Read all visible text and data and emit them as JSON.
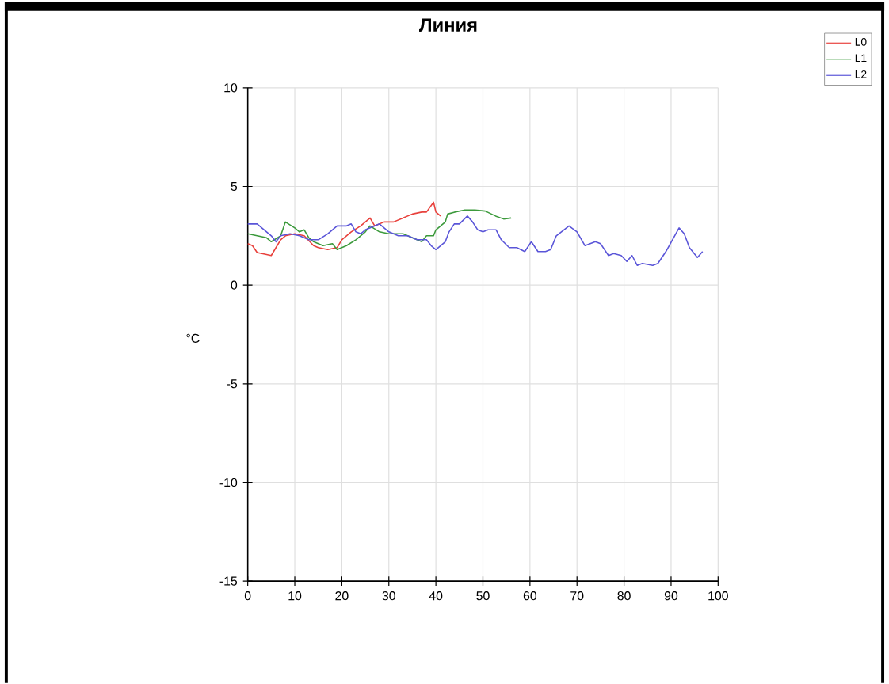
{
  "chart_data": {
    "type": "line",
    "title": "Линия",
    "ylabel": "°C",
    "xlim": [
      0,
      100
    ],
    "ylim": [
      -15,
      10
    ],
    "xticks": [
      0,
      10,
      20,
      30,
      40,
      50,
      60,
      70,
      80,
      90,
      100
    ],
    "yticks": [
      -15,
      -10,
      -5,
      0,
      5,
      10
    ],
    "grid": true,
    "legend": "top right",
    "marker": "none",
    "line_style": "solid",
    "series": [
      {
        "name": "L0",
        "color": "#e8413c",
        "x": [
          0,
          1,
          2,
          3,
          4,
          5,
          6,
          7,
          8,
          10,
          12,
          14,
          15,
          17,
          19,
          20,
          22,
          24,
          26,
          27,
          29,
          31,
          33,
          35,
          37,
          38,
          39.5,
          40,
          41
        ],
        "values": [
          2.1,
          2.0,
          1.65,
          1.6,
          1.55,
          1.5,
          1.9,
          2.3,
          2.5,
          2.6,
          2.5,
          2.0,
          1.9,
          1.8,
          1.9,
          2.3,
          2.7,
          3.0,
          3.4,
          3.0,
          3.2,
          3.2,
          3.4,
          3.6,
          3.7,
          3.7,
          4.2,
          3.7,
          3.5
        ]
      },
      {
        "name": "L1",
        "color": "#3c9a3c",
        "x": [
          0,
          2,
          4,
          5,
          7,
          8,
          10,
          11,
          12,
          13,
          14,
          16,
          18,
          19,
          20,
          21,
          23,
          25,
          26,
          28,
          30,
          33,
          35,
          37,
          38,
          39.5,
          40,
          42,
          42.5,
          44,
          46,
          48.3,
          50.5,
          52.7,
          54.4,
          56
        ],
        "values": [
          2.6,
          2.5,
          2.4,
          2.2,
          2.5,
          3.2,
          2.9,
          2.7,
          2.8,
          2.4,
          2.2,
          2.0,
          2.1,
          1.8,
          1.9,
          2.0,
          2.3,
          2.7,
          3.0,
          2.7,
          2.6,
          2.6,
          2.4,
          2.2,
          2.5,
          2.5,
          2.8,
          3.2,
          3.6,
          3.7,
          3.8,
          3.8,
          3.75,
          3.5,
          3.35,
          3.4
        ]
      },
      {
        "name": "L2",
        "color": "#5a55d8",
        "x": [
          0,
          2,
          3,
          5,
          6,
          7,
          9,
          11,
          13,
          15,
          17,
          19,
          21,
          22,
          23,
          24,
          25,
          27,
          28,
          30,
          32,
          34,
          36,
          38,
          39,
          40,
          42,
          42.8,
          43.9,
          45,
          46.7,
          47.8,
          48.9,
          50,
          51.1,
          52.8,
          53.9,
          55.6,
          57.2,
          58.9,
          60.3,
          61.7,
          63.3,
          64.4,
          65.6,
          68.3,
          70,
          71.7,
          73.9,
          75,
          76.7,
          77.8,
          79.4,
          80.6,
          81.7,
          82.8,
          83.9,
          86.1,
          87.2,
          88.9,
          91.7,
          92.8,
          93.9,
          95.6,
          96.7
        ],
        "values": [
          3.1,
          3.1,
          2.9,
          2.5,
          2.2,
          2.5,
          2.6,
          2.5,
          2.3,
          2.3,
          2.6,
          3.0,
          3.0,
          3.1,
          2.7,
          2.6,
          2.8,
          3.0,
          3.1,
          2.7,
          2.5,
          2.5,
          2.3,
          2.3,
          2.0,
          1.8,
          2.2,
          2.7,
          3.1,
          3.1,
          3.5,
          3.2,
          2.8,
          2.7,
          2.8,
          2.8,
          2.3,
          1.9,
          1.9,
          1.7,
          2.2,
          1.7,
          1.7,
          1.8,
          2.5,
          3.0,
          2.7,
          2.0,
          2.2,
          2.1,
          1.5,
          1.6,
          1.5,
          1.2,
          1.5,
          1.0,
          1.1,
          1.0,
          1.1,
          1.7,
          2.9,
          2.6,
          1.9,
          1.4,
          1.7
        ]
      }
    ]
  }
}
